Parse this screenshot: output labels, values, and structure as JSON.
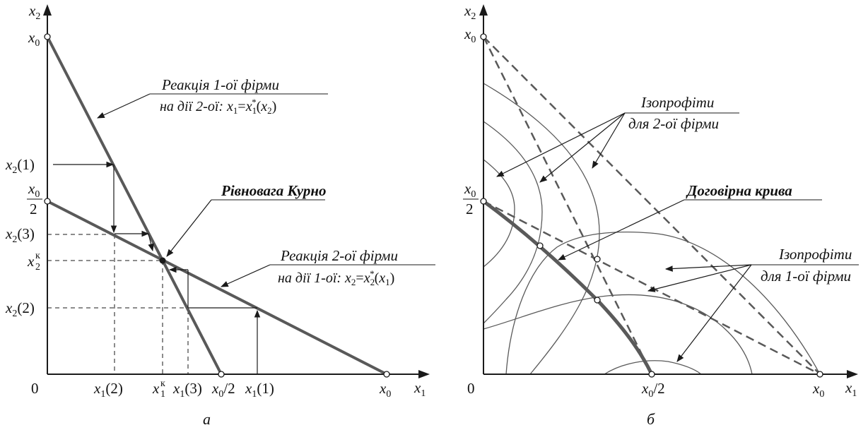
{
  "panel_a": {
    "caption": "а",
    "axis": {
      "y_symbol": "x",
      "y_sub": "2",
      "x_symbol": "x",
      "x_sub": "1",
      "origin": "0",
      "y_top": {
        "sym": "x",
        "sub": "0"
      },
      "y_half": {
        "num_sym": "x",
        "num_sub": "0",
        "den": "2"
      },
      "x_right": {
        "sym": "x",
        "sub": "0"
      }
    },
    "y_ticks": [
      {
        "sym": "x",
        "sub": "2",
        "arg": "(1)"
      },
      {
        "sym": "x",
        "sub": "2",
        "arg": "(3)"
      },
      {
        "sym": "x",
        "sub": "2",
        "sup": "к",
        "arg": ""
      },
      {
        "sym": "x",
        "sub": "2",
        "arg": "(2)"
      }
    ],
    "x_ticks": [
      {
        "sym": "x",
        "sub": "1",
        "arg": "(2)"
      },
      {
        "sym": "x",
        "sub": "1",
        "sup": "к",
        "arg": ""
      },
      {
        "sym": "x",
        "sub": "1",
        "arg": "(3)"
      },
      {
        "sym": "x",
        "sub": "0",
        "arg": "/2"
      },
      {
        "sym": "x",
        "sub": "1",
        "arg": "(1)"
      }
    ],
    "reaction1": {
      "line1": "Реакція 1-ої фірми",
      "line2_pre": "на дії 2-ої: ",
      "lhs_sym": "x",
      "lhs_sub": "1",
      "eq": "=",
      "rhs_sym": "x",
      "rhs_sub": "1",
      "rhs_sup": "*",
      "arg_open": "(",
      "arg_sym": "x",
      "arg_sub": "2",
      "arg_close": ")"
    },
    "reaction2": {
      "line1": "Реакція 2-ої фірми",
      "line2_pre": "на дії 1-ої: ",
      "lhs_sym": "x",
      "lhs_sub": "2",
      "eq": "=",
      "rhs_sym": "x",
      "rhs_sub": "2",
      "rhs_sup": "*",
      "arg_open": "(",
      "arg_sym": "x",
      "arg_sub": "1",
      "arg_close": ")"
    },
    "equilibrium_label": "Рівновага Курно"
  },
  "panel_b": {
    "caption": "б",
    "axis": {
      "y_symbol": "x",
      "y_sub": "2",
      "x_symbol": "x",
      "x_sub": "1",
      "origin": "0",
      "y_top": {
        "sym": "x",
        "sub": "0"
      },
      "y_half": {
        "num_sym": "x",
        "num_sub": "0",
        "den": "2"
      },
      "x_half": {
        "sym": "x",
        "sub": "0",
        "arg": "/2"
      },
      "x_right": {
        "sym": "x",
        "sub": "0"
      }
    },
    "isoprofit2": {
      "line1": "Ізопрофіти",
      "line2": "для 2-ої фірми"
    },
    "contract_curve": "Договірна крива",
    "isoprofit1": {
      "line1": "Ізопрофіти",
      "line2": "для 1-ої фірми"
    }
  }
}
